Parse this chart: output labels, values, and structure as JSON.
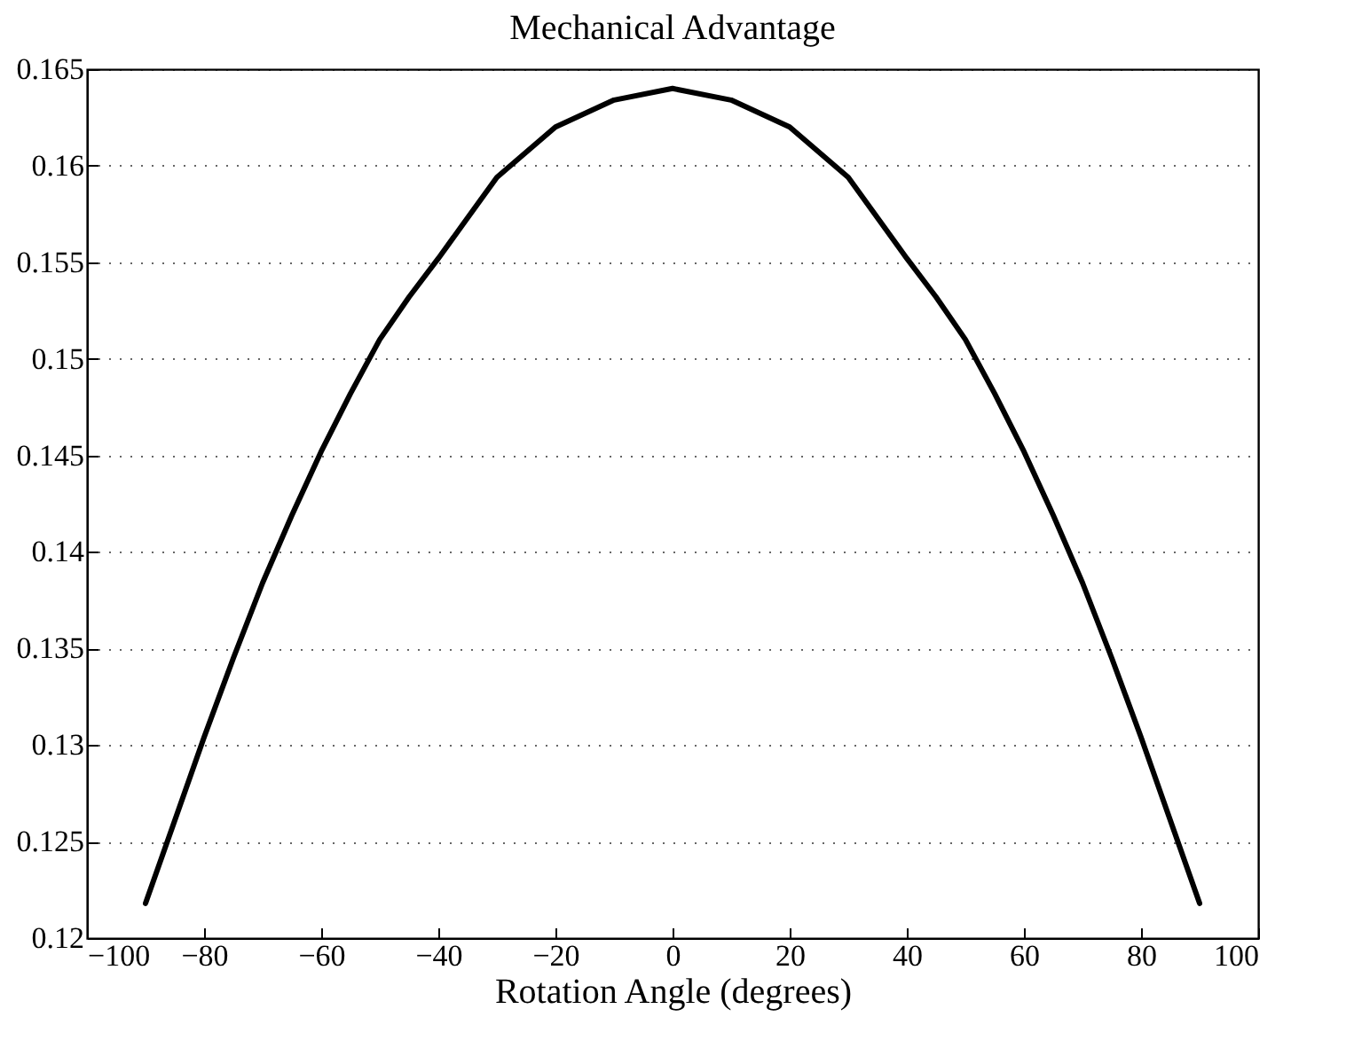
{
  "chart_data": {
    "type": "line",
    "title": "Mechanical Advantage",
    "xlabel": "Rotation Angle (degrees)",
    "x": [
      -90,
      -85,
      -80,
      -75,
      -70,
      -65,
      -60,
      -55,
      -50,
      -45,
      -40,
      -30,
      -20,
      -10,
      0,
      10,
      20,
      30,
      40,
      45,
      50,
      55,
      60,
      65,
      70,
      75,
      80,
      85,
      90
    ],
    "series": [
      {
        "color": "#000000",
        "values": [
          0.1218,
          0.1261,
          0.1304,
          0.1345,
          0.1384,
          0.1419,
          0.1452,
          0.1482,
          0.151,
          0.1532,
          0.1552,
          0.1594,
          0.162,
          0.1634,
          0.164,
          0.1634,
          0.162,
          0.1594,
          0.1552,
          0.1532,
          0.151,
          0.1482,
          0.1452,
          0.1419,
          0.1384,
          0.1345,
          0.1304,
          0.1261,
          0.1218
        ]
      }
    ],
    "xlim": [
      -100,
      100
    ],
    "xticks": [
      -100,
      -80,
      -60,
      -40,
      -20,
      0,
      20,
      40,
      60,
      80,
      100
    ],
    "ylim": [
      0.12,
      0.165
    ],
    "yticks": [
      0.12,
      0.125,
      0.13,
      0.135,
      0.14,
      0.145,
      0.15,
      0.155,
      0.16,
      0.165
    ],
    "grid": "y",
    "marker": "none",
    "line_style": "solid"
  }
}
